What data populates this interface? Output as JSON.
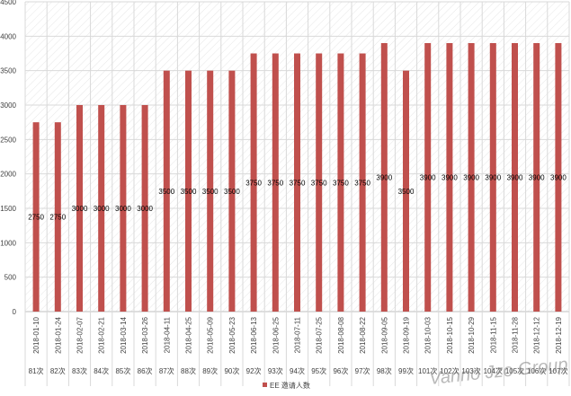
{
  "chart_data": {
    "type": "bar",
    "categories": [
      "2018-01-10",
      "2018-01-24",
      "2018-02-07",
      "2018-02-21",
      "2018-03-14",
      "2018-03-26",
      "2018-04-11",
      "2018-04-25",
      "2018-05-09",
      "2018-05-23",
      "2018-06-13",
      "2018-06-25",
      "2018-07-11",
      "2018-07-25",
      "2018-08-08",
      "2018-08-22",
      "2018-09-05",
      "2018-09-19",
      "2018-10-03",
      "2018-10-15",
      "2018-10-29",
      "2018-11-15",
      "2018-11-28",
      "2018-12-12",
      "2018-12-19"
    ],
    "rounds": [
      "81次",
      "82次",
      "83次",
      "84次",
      "85次",
      "86次",
      "87次",
      "88次",
      "89次",
      "90次",
      "92次",
      "93次",
      "94次",
      "95次",
      "96次",
      "97次",
      "98次",
      "99次",
      "101次",
      "102次",
      "103次",
      "104次",
      "105次",
      "106次",
      "107次"
    ],
    "series": [
      {
        "name": "EE 邀请人数",
        "values": [
          2750,
          2750,
          3000,
          3000,
          3000,
          3000,
          3500,
          3500,
          3500,
          3500,
          3750,
          3750,
          3750,
          3750,
          3750,
          3750,
          3900,
          3500,
          3900,
          3900,
          3900,
          3900,
          3900,
          3900,
          3900
        ]
      }
    ],
    "yticks": [
      0,
      500,
      1000,
      1500,
      2000,
      2500,
      3000,
      3500,
      4000,
      4500
    ],
    "ylim": [
      0,
      4500
    ],
    "grid": true,
    "legend_position": "bottom",
    "watermark": "Vanno Jzo Group",
    "colors": {
      "bar": "#c0504d",
      "grid": "#d9d9d9",
      "axis": "#bfbfbf",
      "text": "#404040",
      "hatch": "#e4e4e4"
    }
  }
}
